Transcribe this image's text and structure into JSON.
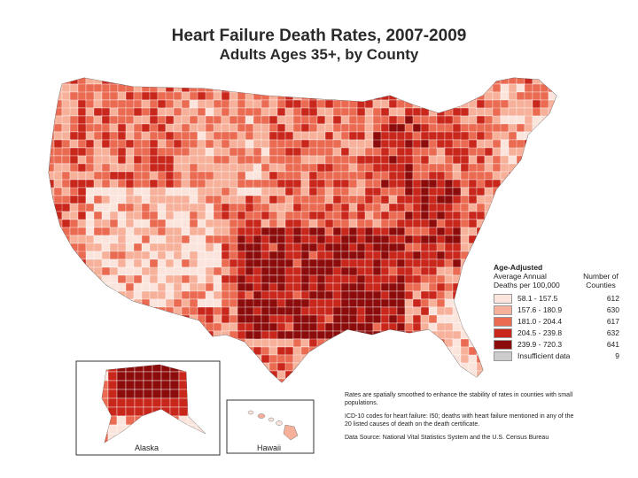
{
  "title": {
    "line1": "Heart Failure Death Rates, 2007-2009",
    "line2": "Adults Ages 35+, by County"
  },
  "legend": {
    "heading": "Age-Adjusted",
    "subheading1": "Average Annual",
    "subheading2": "Deaths per 100,000",
    "count_heading1": "Number of",
    "count_heading2": "Counties",
    "classes": [
      {
        "label": "58.1 - 157.5",
        "count": "612",
        "color": "#fbe4dc"
      },
      {
        "label": "157.6 - 180.9",
        "count": "630",
        "color": "#f7b09a"
      },
      {
        "label": "181.0 - 204.4",
        "count": "617",
        "color": "#ea6b52"
      },
      {
        "label": "204.5 - 239.8",
        "count": "632",
        "color": "#c9261c"
      },
      {
        "label": "239.9 - 720.3",
        "count": "641",
        "color": "#8c0b0b"
      },
      {
        "label": "Insufficient data",
        "count": "9",
        "color": "#cccccc"
      }
    ]
  },
  "insets": {
    "alaska_label": "Alaska",
    "hawaii_label": "Hawaii"
  },
  "notes": {
    "smoothing": "Rates are spatially smoothed to enhance the stability of rates in counties with small populations.",
    "icd": "ICD-10 codes for heart failure: I50; deaths with heart failure mentioned in any of the 20 listed causes of death on the death certificate.",
    "source": "Data Source: National Vital Statistics System and the U.S. Census Bureau"
  }
}
